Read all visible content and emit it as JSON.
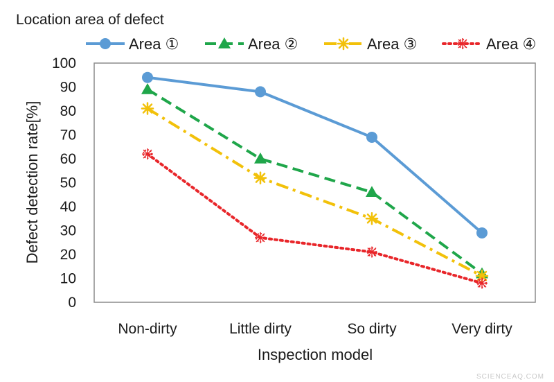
{
  "chart_data": {
    "type": "line",
    "legend_title": "Location area of defect",
    "legend_position": "top",
    "categories": [
      "Non-dirty",
      "Little dirty",
      "So dirty",
      "Very dirty"
    ],
    "xlabel": "Inspection model",
    "ylabel": "Defect detection rate[%]",
    "ylim": [
      0,
      100
    ],
    "yticks": [
      0,
      10,
      20,
      30,
      40,
      50,
      60,
      70,
      80,
      90,
      100
    ],
    "grid": false,
    "series": [
      {
        "name": "Area ①",
        "values": [
          94,
          88,
          69,
          29
        ],
        "color": "#5b9bd5",
        "style": "solid",
        "marker": "circle"
      },
      {
        "name": "Area ②",
        "values": [
          89,
          60,
          46,
          12
        ],
        "color": "#1fa64a",
        "style": "dashed",
        "marker": "triangle"
      },
      {
        "name": "Area ③",
        "values": [
          81,
          52,
          35,
          11
        ],
        "color": "#f2c10a",
        "style": "dashdot",
        "marker": "star"
      },
      {
        "name": "Area ④",
        "values": [
          62,
          27,
          21,
          8
        ],
        "color": "#e8262a",
        "style": "dotted",
        "marker": "burst"
      }
    ]
  },
  "watermark": "SCIENCEAQ.COM"
}
